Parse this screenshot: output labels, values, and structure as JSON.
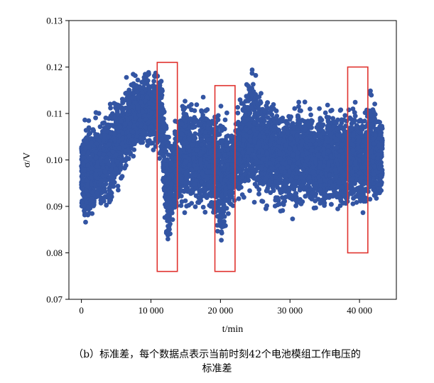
{
  "chart_data": {
    "type": "scatter",
    "xlabel": "t/min",
    "ylabel": "σ/V",
    "xlim": [
      -1800,
      45300
    ],
    "ylim": [
      0.07,
      0.13
    ],
    "x_ticks": [
      0,
      10000,
      20000,
      30000,
      40000
    ],
    "x_tick_labels": [
      "0",
      "10 000",
      "20 000",
      "30 000",
      "40 000"
    ],
    "y_ticks": [
      0.07,
      0.08,
      0.09,
      0.1,
      0.11,
      0.12,
      0.13
    ],
    "y_tick_labels": [
      "0.07",
      "0.08",
      "0.09",
      "0.10",
      "0.11",
      "0.12",
      "0.13"
    ],
    "grid": false,
    "marker_color": "#3355a3",
    "highlight_color": "#e0322e",
    "series": [
      {
        "x": [
          0,
          500,
          1000,
          1500,
          2000,
          2500,
          3000,
          3500,
          4000,
          4500,
          5000,
          5500,
          6000,
          6500,
          7000,
          7500,
          8000,
          8500,
          9000,
          9500,
          10000,
          10500,
          11000,
          11500,
          12000,
          12500,
          13000,
          13500,
          14000,
          14500,
          15000,
          15500,
          16000,
          16500,
          17000,
          17500,
          18000,
          18500,
          19000,
          19500,
          20000,
          20500,
          21000,
          21500,
          22000,
          22500,
          23000,
          23500,
          24000,
          24500,
          25000,
          25500,
          26000,
          26500,
          27000,
          27500,
          28000,
          28500,
          29000,
          29500,
          30000,
          30500,
          31000,
          31500,
          32000,
          32500,
          33000,
          33500,
          34000,
          34500,
          35000,
          35500,
          36000,
          36500,
          37000,
          37500,
          38000,
          38500,
          39000,
          39500,
          40000,
          40500,
          41000,
          41500,
          42000,
          42500,
          43000,
          43300
        ],
        "upper": [
          0.108,
          0.11,
          0.111,
          0.11,
          0.112,
          0.111,
          0.113,
          0.112,
          0.114,
          0.114,
          0.116,
          0.116,
          0.117,
          0.118,
          0.118,
          0.12,
          0.12,
          0.121,
          0.12,
          0.122,
          0.12,
          0.121,
          0.12,
          0.119,
          0.115,
          0.108,
          0.107,
          0.112,
          0.114,
          0.115,
          0.114,
          0.115,
          0.114,
          0.113,
          0.113,
          0.115,
          0.114,
          0.112,
          0.113,
          0.112,
          0.114,
          0.112,
          0.11,
          0.106,
          0.108,
          0.113,
          0.115,
          0.119,
          0.12,
          0.122,
          0.121,
          0.119,
          0.117,
          0.116,
          0.114,
          0.115,
          0.114,
          0.115,
          0.114,
          0.114,
          0.113,
          0.114,
          0.115,
          0.113,
          0.114,
          0.113,
          0.114,
          0.113,
          0.114,
          0.114,
          0.113,
          0.114,
          0.113,
          0.114,
          0.113,
          0.113,
          0.113,
          0.114,
          0.113,
          0.114,
          0.114,
          0.113,
          0.116,
          0.118,
          0.115,
          0.113,
          0.112,
          0.111
        ],
        "lower": [
          0.087,
          0.085,
          0.084,
          0.084,
          0.085,
          0.086,
          0.086,
          0.087,
          0.088,
          0.089,
          0.09,
          0.092,
          0.094,
          0.095,
          0.097,
          0.098,
          0.099,
          0.1,
          0.101,
          0.101,
          0.101,
          0.1,
          0.101,
          0.096,
          0.082,
          0.078,
          0.083,
          0.086,
          0.087,
          0.088,
          0.088,
          0.088,
          0.087,
          0.087,
          0.088,
          0.087,
          0.088,
          0.088,
          0.086,
          0.083,
          0.078,
          0.08,
          0.086,
          0.088,
          0.089,
          0.09,
          0.091,
          0.09,
          0.09,
          0.09,
          0.09,
          0.089,
          0.088,
          0.088,
          0.088,
          0.087,
          0.088,
          0.087,
          0.088,
          0.087,
          0.086,
          0.087,
          0.087,
          0.088,
          0.087,
          0.087,
          0.088,
          0.087,
          0.088,
          0.088,
          0.087,
          0.088,
          0.087,
          0.088,
          0.088,
          0.087,
          0.087,
          0.088,
          0.087,
          0.088,
          0.087,
          0.085,
          0.085,
          0.088,
          0.089,
          0.088,
          0.088,
          0.09
        ]
      }
    ],
    "highlights": [
      {
        "x0": 10900,
        "x1": 13800,
        "y0": 0.076,
        "y1": 0.121
      },
      {
        "x0": 19200,
        "x1": 22100,
        "y0": 0.076,
        "y1": 0.116
      },
      {
        "x0": 38300,
        "x1": 41200,
        "y0": 0.08,
        "y1": 0.12
      }
    ]
  },
  "caption": {
    "line1": "（b）标准差，每个数据点表示当前时刻42个电池模组工作电压的",
    "line2": "标准差"
  }
}
